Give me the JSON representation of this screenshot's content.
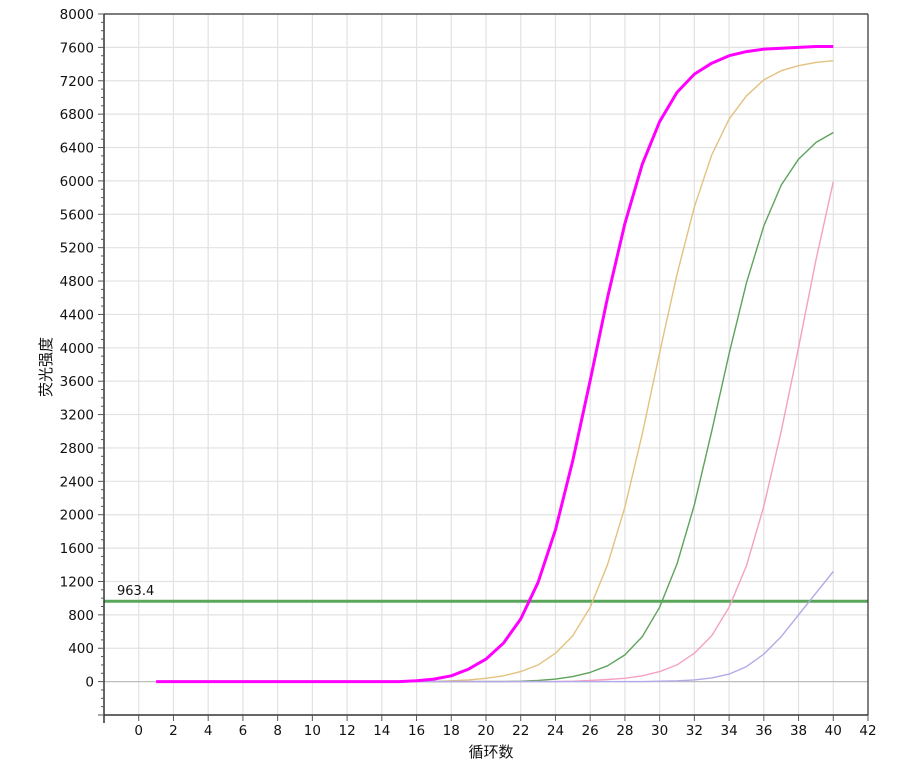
{
  "chart_data": {
    "type": "line",
    "title": "",
    "xlabel": "循环数",
    "ylabel": "荧光强度",
    "xlim": [
      -2,
      42
    ],
    "ylim": [
      -400,
      8000
    ],
    "xticks": [
      0,
      2,
      4,
      6,
      8,
      10,
      12,
      14,
      16,
      18,
      20,
      22,
      24,
      26,
      28,
      30,
      32,
      34,
      36,
      38,
      40,
      42
    ],
    "yticks": [
      0,
      400,
      800,
      1200,
      1600,
      2000,
      2400,
      2800,
      3200,
      3600,
      4000,
      4400,
      4800,
      5200,
      5600,
      6000,
      6400,
      6800,
      7200,
      7600,
      8000
    ],
    "grid": true,
    "threshold": {
      "value": 963.4,
      "label": "963.4",
      "color": "#5aa65a"
    },
    "x": [
      1,
      2,
      3,
      4,
      5,
      6,
      7,
      8,
      9,
      10,
      11,
      12,
      13,
      14,
      15,
      16,
      17,
      18,
      19,
      20,
      21,
      22,
      23,
      24,
      25,
      26,
      27,
      28,
      29,
      30,
      31,
      32,
      33,
      34,
      35,
      36,
      37,
      38,
      39,
      40
    ],
    "series": [
      {
        "color": "#ff00ff",
        "values": [
          0,
          0,
          0,
          0,
          0,
          0,
          0,
          0,
          0,
          0,
          0,
          0,
          0,
          0,
          0,
          10,
          30,
          70,
          150,
          270,
          460,
          750,
          1190,
          1820,
          2650,
          3610,
          4600,
          5490,
          6200,
          6710,
          7060,
          7280,
          7410,
          7500,
          7550,
          7580,
          7590,
          7600,
          7610,
          7610
        ]
      },
      {
        "color": "#e3c27f",
        "values": [
          0,
          0,
          0,
          0,
          0,
          0,
          0,
          0,
          0,
          0,
          0,
          0,
          0,
          0,
          0,
          0,
          0,
          10,
          20,
          40,
          70,
          120,
          200,
          340,
          550,
          890,
          1400,
          2090,
          2970,
          3940,
          4880,
          5690,
          6310,
          6740,
          7020,
          7210,
          7320,
          7380,
          7420,
          7440
        ]
      },
      {
        "color": "#5ca35c",
        "values": [
          0,
          0,
          0,
          0,
          0,
          0,
          0,
          0,
          0,
          0,
          0,
          0,
          0,
          0,
          0,
          0,
          0,
          0,
          0,
          0,
          0,
          5,
          15,
          30,
          60,
          110,
          190,
          320,
          540,
          890,
          1410,
          2120,
          3000,
          3930,
          4780,
          5460,
          5950,
          6260,
          6460,
          6580
        ]
      },
      {
        "color": "#f4a0c4",
        "values": [
          0,
          0,
          0,
          0,
          0,
          0,
          0,
          0,
          0,
          0,
          0,
          0,
          0,
          0,
          0,
          0,
          0,
          0,
          0,
          0,
          0,
          0,
          0,
          0,
          5,
          15,
          25,
          40,
          70,
          120,
          200,
          340,
          550,
          890,
          1390,
          2100,
          3000,
          4000,
          5050,
          5990
        ]
      },
      {
        "color": "#b2aae6",
        "values": [
          0,
          0,
          0,
          0,
          0,
          0,
          0,
          0,
          0,
          0,
          0,
          0,
          0,
          0,
          0,
          0,
          0,
          0,
          0,
          0,
          0,
          0,
          0,
          0,
          0,
          0,
          0,
          0,
          0,
          5,
          10,
          20,
          45,
          90,
          180,
          330,
          540,
          800,
          1060,
          1320
        ]
      }
    ]
  }
}
